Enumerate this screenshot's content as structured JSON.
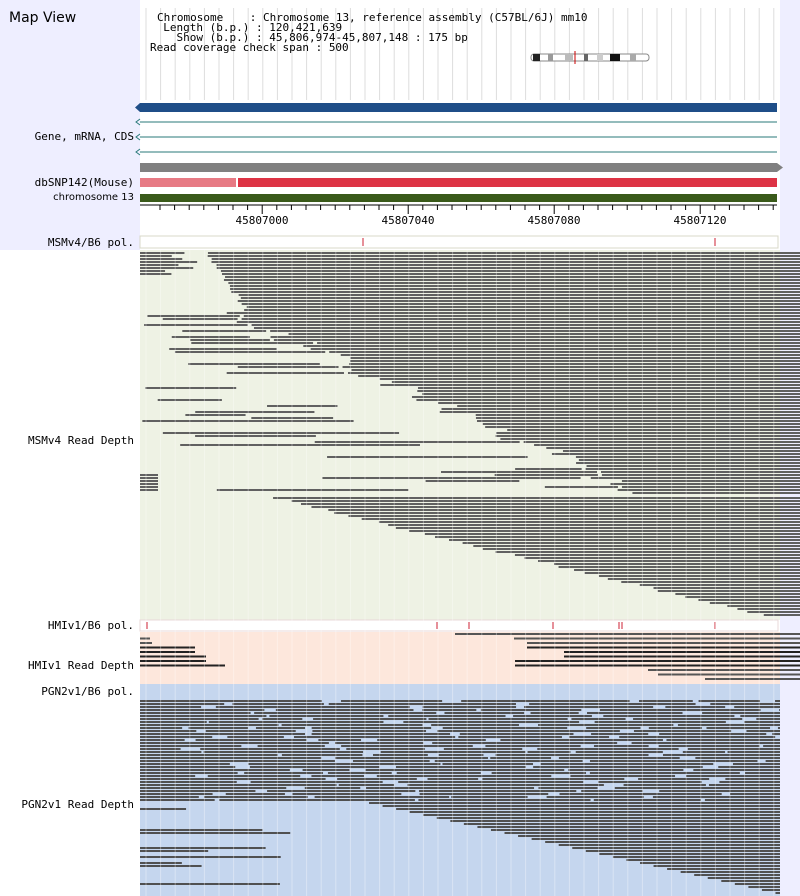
{
  "panel": {
    "title": "Map View"
  },
  "info": {
    "chromosome_label": "Chromosome    : ",
    "chromosome_value": "Chromosome 13, reference assembly (C57BL/6J) mm10",
    "length_label": "  Length (b.p.) : ",
    "length_value": "120,421,639",
    "show_label": "    Show (b.p.) : ",
    "show_value": "45,806,974-45,807,148 : 175 bp",
    "coverage_label": "Read coverage check span : ",
    "coverage_value": "500"
  },
  "tracks": {
    "gene": "Gene, mRNA, CDS",
    "dbsnp": "dbSNP142(Mouse)",
    "chromosome": "chromosome 13",
    "msm_pol": "MSMv4/B6 pol.",
    "msm_depth": "MSMv4 Read Depth",
    "hmi_pol": "HMIv1/B6 pol.",
    "hmi_depth": "HMIv1 Read Depth",
    "pgn_pol": "PGN2v1/B6 pol.",
    "pgn_depth": "PGN2v1 Read Depth"
  },
  "ruler": {
    "ticks": [
      "45807000",
      "45807040",
      "45807080",
      "45807120"
    ]
  },
  "colors": {
    "gene_bar": "#1f4e88",
    "snp_gray": "#808080",
    "snp_pink": "#e77a84",
    "snp_red": "#dd3344",
    "chrom_bar": "#3a5a1a",
    "msm_bg": "#eef2e4",
    "hmi_bg": "#fde7dc",
    "pgn_bg": "#c5d6ee",
    "read": "#606060"
  }
}
